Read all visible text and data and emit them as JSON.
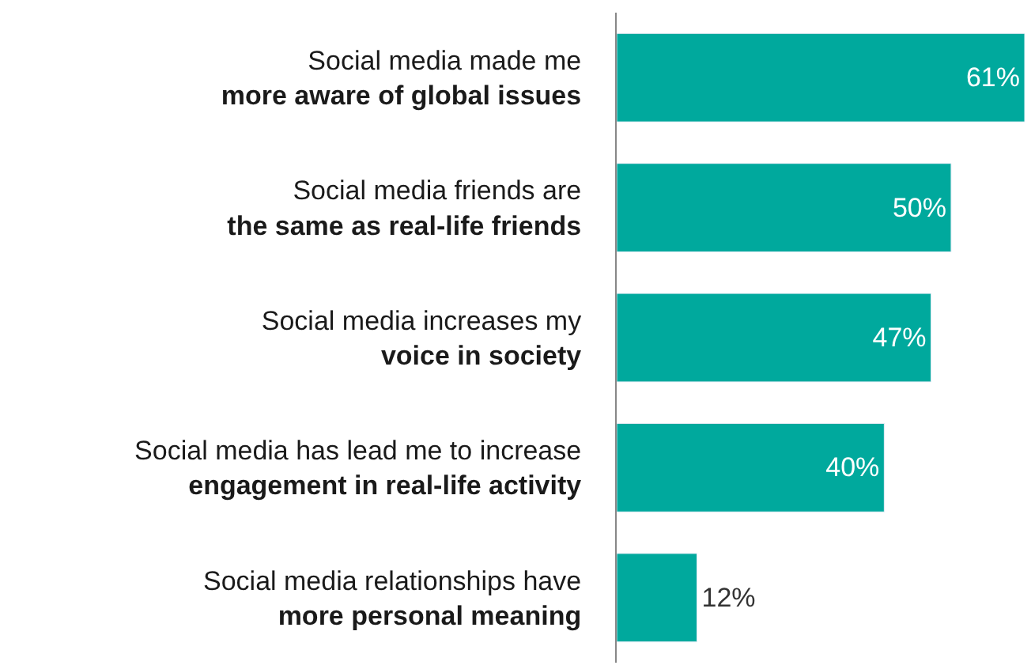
{
  "chart_data": {
    "type": "bar",
    "orientation": "horizontal",
    "categories": [
      "Social media made me\nmore aware of global issues",
      "Social media friends are\nthe same as real-life friends",
      "Social media increases my\nvoice in society",
      "Social media has lead me to increase\nengagement in real-life activity",
      "Social media relationships have\nmore personal meaning"
    ],
    "values": [
      61,
      50,
      47,
      40,
      12
    ],
    "value_labels": [
      "61%",
      "50%",
      "47%",
      "40%",
      "12%"
    ],
    "color": "#00a99d",
    "xlim": [
      0,
      61
    ],
    "tick_labels": "y"
  }
}
